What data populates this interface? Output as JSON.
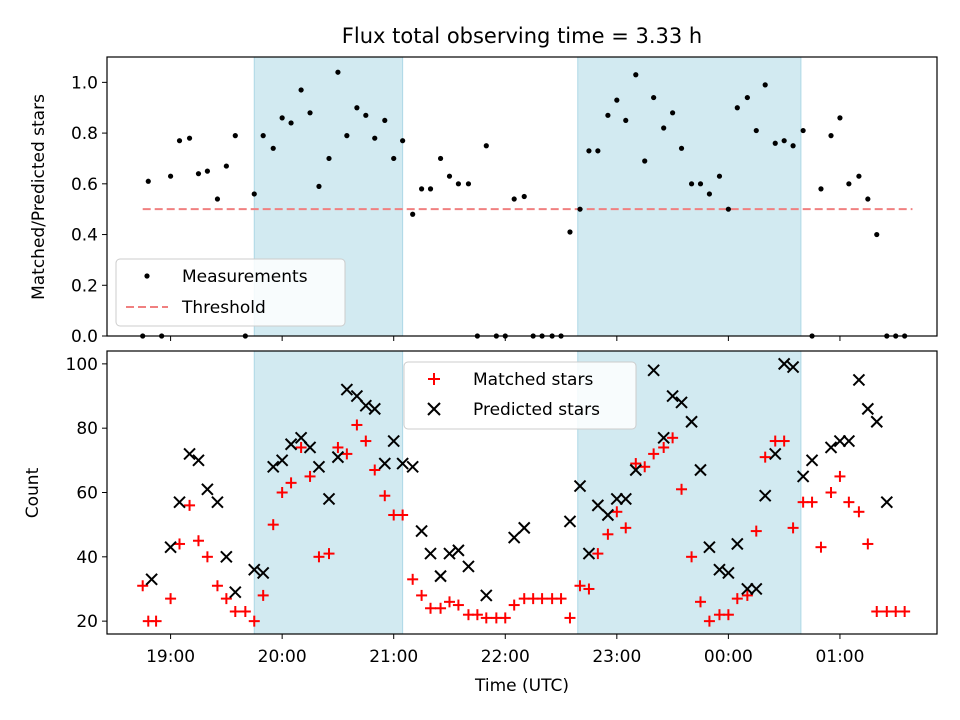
{
  "title": "Flux total observing time = 3.33 h",
  "colors": {
    "measurement": "#000000",
    "threshold": "#f08080",
    "matched": "#ff0000",
    "predicted": "#000000",
    "shade": "#add8e6"
  },
  "chart_data": [
    {
      "type": "scatter",
      "panel": "top",
      "title": "Flux total observing time = 3.33 h",
      "xlabel": "",
      "ylabel": "Matched/Predicted stars",
      "x_unit": "hours since 19:00 UTC",
      "xlim": [
        -0.57,
        6.87
      ],
      "ylim": [
        0,
        1.1
      ],
      "yticks": [
        0.0,
        0.2,
        0.4,
        0.6,
        0.8,
        1.0
      ],
      "ytick_labels": [
        "0.0",
        "0.2",
        "0.4",
        "0.6",
        "0.8",
        "1.0"
      ],
      "xticks": [
        0,
        1,
        2,
        3,
        4,
        5,
        6
      ],
      "shaded_x_ranges": [
        [
          0.75,
          2.08
        ],
        [
          3.65,
          5.65
        ]
      ],
      "legend": {
        "location": "lower-left",
        "entries": [
          "Measurements",
          "Threshold"
        ]
      },
      "threshold": {
        "name": "Threshold",
        "y": 0.5,
        "x_range": [
          -0.25,
          6.65
        ]
      },
      "series": [
        {
          "name": "Measurements",
          "points": [
            [
              -0.25,
              0.0
            ],
            [
              -0.2,
              0.61
            ],
            [
              -0.08,
              0.0
            ],
            [
              0.0,
              0.63
            ],
            [
              0.08,
              0.77
            ],
            [
              0.17,
              0.78
            ],
            [
              0.25,
              0.64
            ],
            [
              0.33,
              0.65
            ],
            [
              0.42,
              0.54
            ],
            [
              0.5,
              0.67
            ],
            [
              0.58,
              0.79
            ],
            [
              0.67,
              0.0
            ],
            [
              0.75,
              0.56
            ],
            [
              0.83,
              0.79
            ],
            [
              0.92,
              0.74
            ],
            [
              1.0,
              0.86
            ],
            [
              1.08,
              0.84
            ],
            [
              1.17,
              0.97
            ],
            [
              1.25,
              0.88
            ],
            [
              1.33,
              0.59
            ],
            [
              1.42,
              0.7
            ],
            [
              1.5,
              1.04
            ],
            [
              1.58,
              0.79
            ],
            [
              1.67,
              0.9
            ],
            [
              1.75,
              0.87
            ],
            [
              1.83,
              0.78
            ],
            [
              1.92,
              0.85
            ],
            [
              2.0,
              0.7
            ],
            [
              2.08,
              0.77
            ],
            [
              2.17,
              0.48
            ],
            [
              2.25,
              0.58
            ],
            [
              2.33,
              0.58
            ],
            [
              2.42,
              0.7
            ],
            [
              2.5,
              0.63
            ],
            [
              2.58,
              0.6
            ],
            [
              2.67,
              0.6
            ],
            [
              2.75,
              0.0
            ],
            [
              2.83,
              0.75
            ],
            [
              2.92,
              0.0
            ],
            [
              3.0,
              0.0
            ],
            [
              3.08,
              0.54
            ],
            [
              3.17,
              0.55
            ],
            [
              3.25,
              0.0
            ],
            [
              3.33,
              0.0
            ],
            [
              3.42,
              0.0
            ],
            [
              3.5,
              0.0
            ],
            [
              3.58,
              0.41
            ],
            [
              3.67,
              0.5
            ],
            [
              3.75,
              0.73
            ],
            [
              3.83,
              0.73
            ],
            [
              3.92,
              0.87
            ],
            [
              4.0,
              0.93
            ],
            [
              4.08,
              0.85
            ],
            [
              4.17,
              1.03
            ],
            [
              4.25,
              0.69
            ],
            [
              4.33,
              0.94
            ],
            [
              4.42,
              0.82
            ],
            [
              4.5,
              0.88
            ],
            [
              4.58,
              0.74
            ],
            [
              4.67,
              0.6
            ],
            [
              4.75,
              0.6
            ],
            [
              4.83,
              0.56
            ],
            [
              4.92,
              0.63
            ],
            [
              5.0,
              0.5
            ],
            [
              5.08,
              0.9
            ],
            [
              5.17,
              0.94
            ],
            [
              5.25,
              0.81
            ],
            [
              5.33,
              0.99
            ],
            [
              5.42,
              0.76
            ],
            [
              5.5,
              0.77
            ],
            [
              5.58,
              0.75
            ],
            [
              5.67,
              0.81
            ],
            [
              5.75,
              0.0
            ],
            [
              5.83,
              0.58
            ],
            [
              5.92,
              0.79
            ],
            [
              6.0,
              0.86
            ],
            [
              6.08,
              0.6
            ],
            [
              6.17,
              0.63
            ],
            [
              6.25,
              0.54
            ],
            [
              6.33,
              0.4
            ],
            [
              6.42,
              0.0
            ],
            [
              6.5,
              0.0
            ],
            [
              6.58,
              0.0
            ]
          ]
        }
      ]
    },
    {
      "type": "scatter",
      "panel": "bottom",
      "xlabel": "Time (UTC)",
      "ylabel": "Count",
      "x_unit": "hours since 19:00 UTC",
      "xlim": [
        -0.57,
        6.87
      ],
      "ylim": [
        16,
        104
      ],
      "yticks": [
        20,
        40,
        60,
        80,
        100
      ],
      "xticks": [
        0,
        1,
        2,
        3,
        4,
        5,
        6
      ],
      "xtick_labels": [
        "19:00",
        "20:00",
        "21:00",
        "22:00",
        "23:00",
        "00:00",
        "01:00"
      ],
      "shaded_x_ranges": [
        [
          0.75,
          2.08
        ],
        [
          3.65,
          5.65
        ]
      ],
      "legend": {
        "location": "top-center",
        "entries": [
          "Matched stars",
          "Predicted stars"
        ]
      },
      "series": [
        {
          "name": "Matched stars",
          "marker": "plus",
          "points": [
            [
              -0.25,
              31
            ],
            [
              -0.2,
              20
            ],
            [
              -0.13,
              20
            ],
            [
              0.0,
              27
            ],
            [
              0.08,
              44
            ],
            [
              0.17,
              56
            ],
            [
              0.25,
              45
            ],
            [
              0.33,
              40
            ],
            [
              0.42,
              31
            ],
            [
              0.5,
              27
            ],
            [
              0.58,
              23
            ],
            [
              0.67,
              23
            ],
            [
              0.75,
              20
            ],
            [
              0.83,
              28
            ],
            [
              0.92,
              50
            ],
            [
              1.0,
              60
            ],
            [
              1.08,
              63
            ],
            [
              1.17,
              74
            ],
            [
              1.25,
              65
            ],
            [
              1.33,
              40
            ],
            [
              1.42,
              41
            ],
            [
              1.5,
              74
            ],
            [
              1.58,
              72
            ],
            [
              1.67,
              81
            ],
            [
              1.75,
              76
            ],
            [
              1.83,
              67
            ],
            [
              1.92,
              59
            ],
            [
              2.0,
              53
            ],
            [
              2.08,
              53
            ],
            [
              2.17,
              33
            ],
            [
              2.25,
              28
            ],
            [
              2.33,
              24
            ],
            [
              2.42,
              24
            ],
            [
              2.5,
              26
            ],
            [
              2.58,
              25
            ],
            [
              2.67,
              22
            ],
            [
              2.75,
              22
            ],
            [
              2.83,
              21
            ],
            [
              2.92,
              21
            ],
            [
              3.0,
              21
            ],
            [
              3.08,
              25
            ],
            [
              3.17,
              27
            ],
            [
              3.25,
              27
            ],
            [
              3.33,
              27
            ],
            [
              3.42,
              27
            ],
            [
              3.5,
              27
            ],
            [
              3.58,
              21
            ],
            [
              3.67,
              31
            ],
            [
              3.75,
              30
            ],
            [
              3.83,
              41
            ],
            [
              3.92,
              47
            ],
            [
              4.0,
              54
            ],
            [
              4.08,
              49
            ],
            [
              4.17,
              69
            ],
            [
              4.25,
              68
            ],
            [
              4.33,
              72
            ],
            [
              4.42,
              74
            ],
            [
              4.5,
              77
            ],
            [
              4.58,
              61
            ],
            [
              4.67,
              40
            ],
            [
              4.75,
              26
            ],
            [
              4.83,
              20
            ],
            [
              4.92,
              22
            ],
            [
              5.0,
              22
            ],
            [
              5.08,
              27
            ],
            [
              5.17,
              28
            ],
            [
              5.25,
              48
            ],
            [
              5.33,
              71
            ],
            [
              5.42,
              76
            ],
            [
              5.5,
              76
            ],
            [
              5.58,
              49
            ],
            [
              5.67,
              57
            ],
            [
              5.75,
              57
            ],
            [
              5.83,
              43
            ],
            [
              5.92,
              60
            ],
            [
              6.0,
              65
            ],
            [
              6.08,
              57
            ],
            [
              6.17,
              54
            ],
            [
              6.25,
              44
            ],
            [
              6.33,
              23
            ],
            [
              6.42,
              23
            ],
            [
              6.5,
              23
            ],
            [
              6.58,
              23
            ]
          ]
        },
        {
          "name": "Predicted stars",
          "marker": "x",
          "points": [
            [
              -0.17,
              33
            ],
            [
              0.0,
              43
            ],
            [
              0.08,
              57
            ],
            [
              0.17,
              72
            ],
            [
              0.25,
              70
            ],
            [
              0.33,
              61
            ],
            [
              0.42,
              57
            ],
            [
              0.5,
              40
            ],
            [
              0.58,
              29
            ],
            [
              0.75,
              36
            ],
            [
              0.83,
              35
            ],
            [
              0.92,
              68
            ],
            [
              1.0,
              70
            ],
            [
              1.08,
              75
            ],
            [
              1.17,
              77
            ],
            [
              1.25,
              74
            ],
            [
              1.33,
              68
            ],
            [
              1.42,
              58
            ],
            [
              1.5,
              71
            ],
            [
              1.58,
              92
            ],
            [
              1.67,
              90
            ],
            [
              1.75,
              87
            ],
            [
              1.83,
              86
            ],
            [
              1.92,
              69
            ],
            [
              2.0,
              76
            ],
            [
              2.08,
              69
            ],
            [
              2.17,
              68
            ],
            [
              2.25,
              48
            ],
            [
              2.33,
              41
            ],
            [
              2.42,
              34
            ],
            [
              2.5,
              41
            ],
            [
              2.58,
              42
            ],
            [
              2.67,
              37
            ],
            [
              2.83,
              28
            ],
            [
              3.08,
              46
            ],
            [
              3.17,
              49
            ],
            [
              3.58,
              51
            ],
            [
              3.67,
              62
            ],
            [
              3.75,
              41
            ],
            [
              3.83,
              56
            ],
            [
              3.92,
              53
            ],
            [
              4.0,
              58
            ],
            [
              4.08,
              58
            ],
            [
              4.17,
              67
            ],
            [
              4.33,
              98
            ],
            [
              4.42,
              77
            ],
            [
              4.5,
              90
            ],
            [
              4.58,
              88
            ],
            [
              4.67,
              82
            ],
            [
              4.75,
              67
            ],
            [
              4.83,
              43
            ],
            [
              4.92,
              36
            ],
            [
              5.0,
              35
            ],
            [
              5.08,
              44
            ],
            [
              5.17,
              30
            ],
            [
              5.25,
              30
            ],
            [
              5.33,
              59
            ],
            [
              5.42,
              72
            ],
            [
              5.5,
              100
            ],
            [
              5.58,
              99
            ],
            [
              5.67,
              65
            ],
            [
              5.75,
              70
            ],
            [
              5.92,
              74
            ],
            [
              6.0,
              76
            ],
            [
              6.08,
              76
            ],
            [
              6.17,
              95
            ],
            [
              6.25,
              86
            ],
            [
              6.33,
              82
            ],
            [
              6.42,
              57
            ]
          ]
        }
      ]
    }
  ]
}
